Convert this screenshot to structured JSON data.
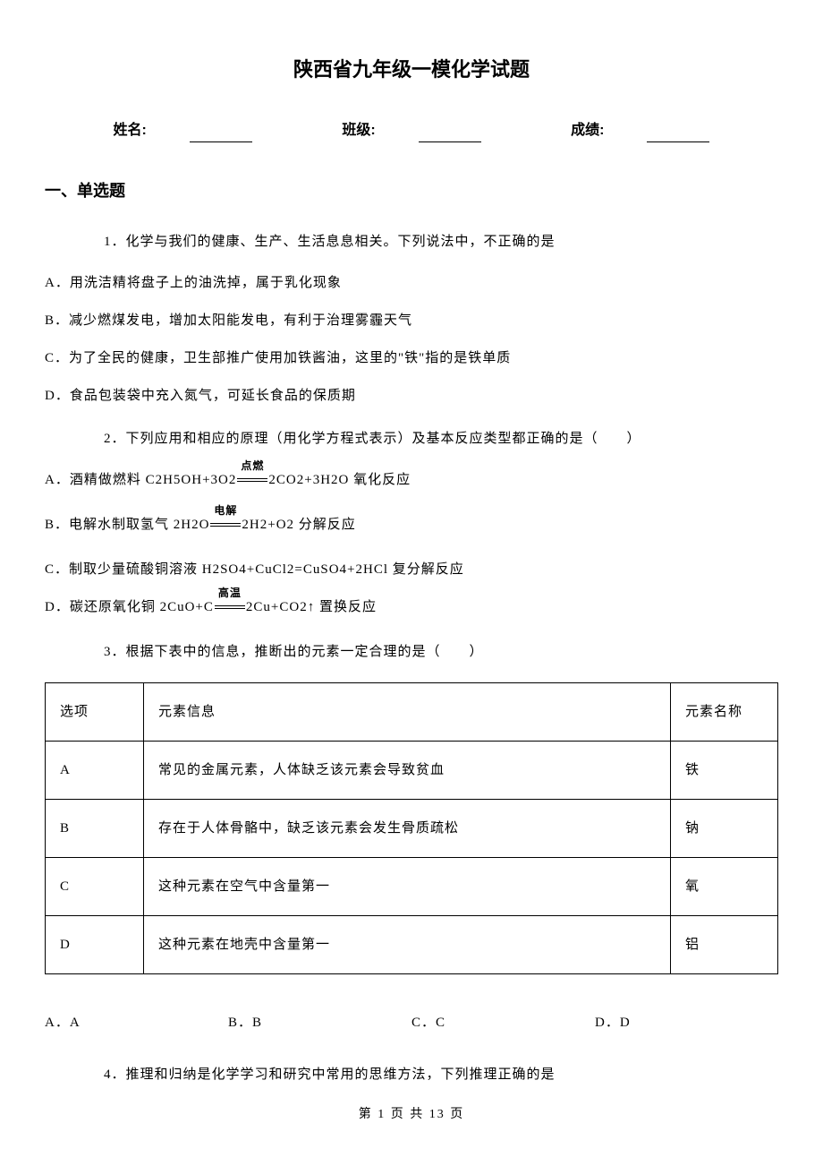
{
  "title": "陕西省九年级一模化学试题",
  "info": {
    "name_label": "姓名:",
    "class_label": "班级:",
    "score_label": "成绩:"
  },
  "section1": "一、单选题",
  "q1": {
    "stem": "1．化学与我们的健康、生产、生活息息相关。下列说法中，不正确的是",
    "A": "A．用洗洁精将盘子上的油洗掉，属于乳化现象",
    "B": "B．减少燃煤发电，增加太阳能发电，有利于治理雾霾天气",
    "C": "C．为了全民的健康，卫生部推广使用加铁酱油，这里的\"铁\"指的是铁单质",
    "D": "D．食品包装袋中充入氮气，可延长食品的保质期"
  },
  "q2": {
    "stem": "2．下列应用和相应的原理（用化学方程式表示）及基本反应类型都正确的是（　　）",
    "A_pre": "A．酒精做燃料 C2H5OH+3O2",
    "A_cond": "点燃",
    "A_post": "2CO2+3H2O 氧化反应",
    "B_pre": "B．电解水制取氢气 2H2O",
    "B_cond": "电解",
    "B_post": "2H2+O2 分解反应",
    "C": "C．制取少量硫酸铜溶液 H2SO4+CuCl2=CuSO4+2HCl 复分解反应",
    "D_pre": "D．碳还原氧化铜 2CuO+C",
    "D_cond": "高温",
    "D_post": "2Cu+CO2↑ 置换反应"
  },
  "q3": {
    "stem": "3．根据下表中的信息，推断出的元素一定合理的是（　　）",
    "table": {
      "h1": "选项",
      "h2": "元素信息",
      "h3": "元素名称",
      "rows": [
        [
          "A",
          "常见的金属元素，人体缺乏该元素会导致贫血",
          "铁"
        ],
        [
          "B",
          "存在于人体骨骼中，缺乏该元素会发生骨质疏松",
          "钠"
        ],
        [
          "C",
          "这种元素在空气中含量第一",
          "氧"
        ],
        [
          "D",
          "这种元素在地壳中含量第一",
          "铝"
        ]
      ]
    },
    "opts": {
      "A": "A．A",
      "B": "B．B",
      "C": "C．C",
      "D": "D．D"
    }
  },
  "q4": {
    "stem": "4．推理和归纳是化学学习和研究中常用的思维方法，下列推理正确的是"
  },
  "footer": "第 1 页 共 13 页"
}
